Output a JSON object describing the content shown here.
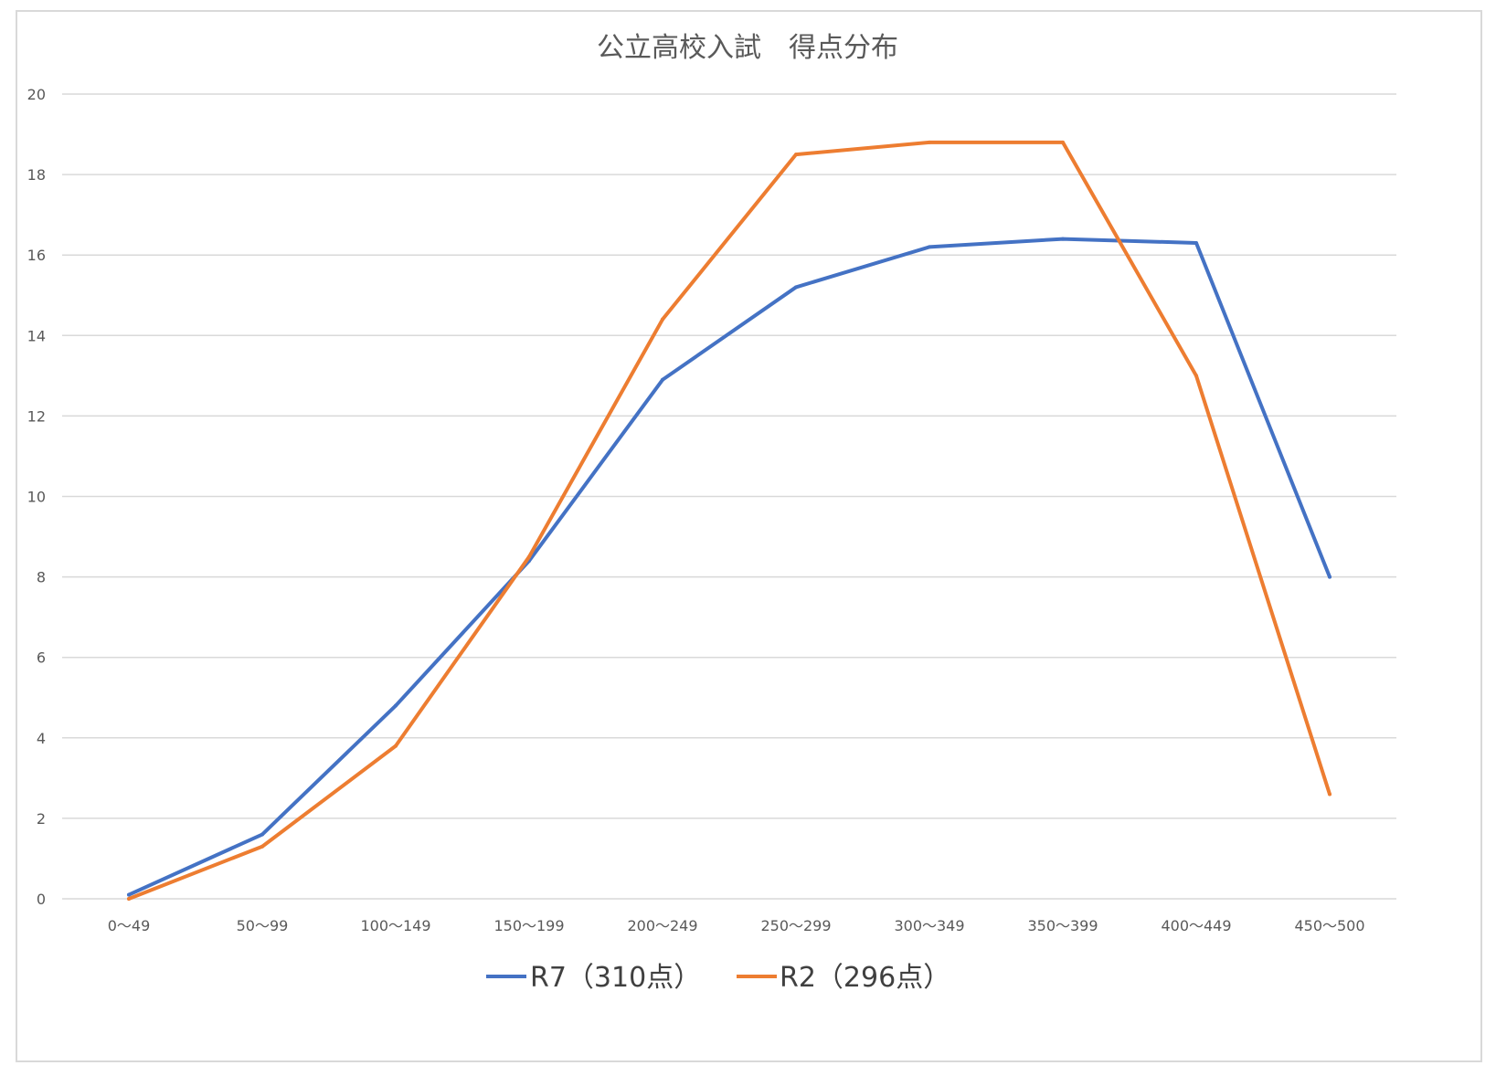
{
  "chart_data": {
    "type": "line",
    "title": "公立高校入試　得点分布",
    "xlabel": "",
    "ylabel": "",
    "categories": [
      "0～49",
      "50～99",
      "100～149",
      "150～199",
      "200～249",
      "250～299",
      "300～349",
      "350～399",
      "400～449",
      "450～500"
    ],
    "ylim": [
      0,
      20
    ],
    "yticks": [
      0,
      2,
      4,
      6,
      8,
      10,
      12,
      14,
      16,
      18,
      20
    ],
    "grid": true,
    "legend_position": "bottom",
    "series": [
      {
        "name": "R7（310点）",
        "color": "#4472c4",
        "values": [
          0.1,
          1.6,
          4.8,
          8.4,
          12.9,
          15.2,
          16.2,
          16.4,
          16.3,
          8.0
        ]
      },
      {
        "name": "R2（296点）",
        "color": "#ed7d31",
        "values": [
          0.0,
          1.3,
          3.8,
          8.5,
          14.4,
          18.5,
          18.8,
          18.8,
          13.0,
          2.6
        ]
      }
    ]
  }
}
